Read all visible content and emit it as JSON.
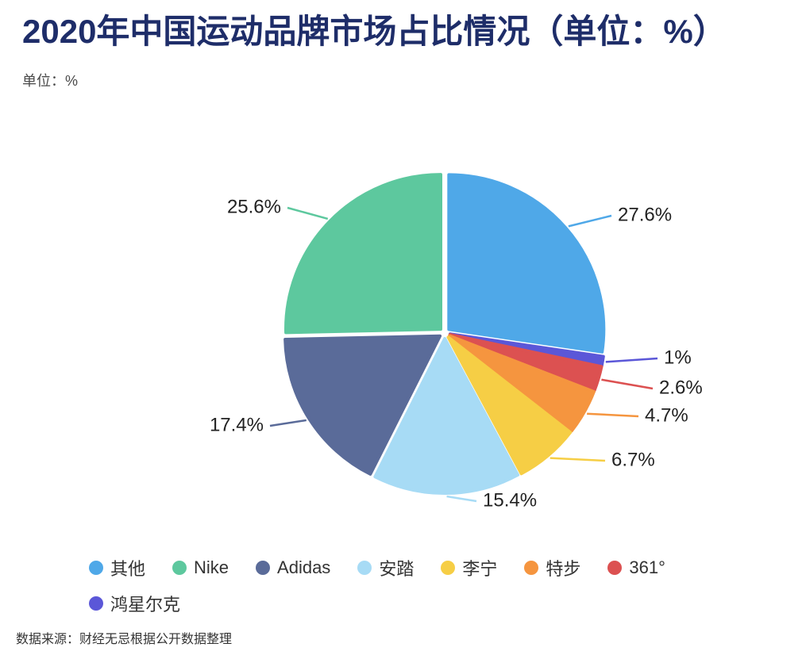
{
  "header": {
    "title": "2020年中国运动品牌市场占比情况（单位：%）",
    "unit_label": "单位：%"
  },
  "footer": {
    "source": "数据来源：财经无忌根据公开数据整理"
  },
  "chart_data": {
    "type": "pie",
    "title": "2020年中国运动品牌市场占比情况（单位：%）",
    "unit": "%",
    "legend_position": "bottom",
    "slices": [
      {
        "name": "其他",
        "value": 27.6,
        "label": "27.6%",
        "color": "#4FA8E8"
      },
      {
        "name": "鸿星尔克",
        "value": 1,
        "label": "1%",
        "color": "#5B57D8"
      },
      {
        "name": "361°",
        "value": 2.6,
        "label": "2.6%",
        "color": "#DC5151"
      },
      {
        "name": "特步",
        "value": 4.7,
        "label": "4.7%",
        "color": "#F5953F"
      },
      {
        "name": "李宁",
        "value": 6.7,
        "label": "6.7%",
        "color": "#F6CE45"
      },
      {
        "name": "安踏",
        "value": 15.4,
        "label": "15.4%",
        "color": "#A7DBF5"
      },
      {
        "name": "Adidas",
        "value": 17.4,
        "label": "17.4%",
        "color": "#5A6B99"
      },
      {
        "name": "Nike",
        "value": 25.6,
        "label": "25.6%",
        "color": "#5DC89E"
      }
    ]
  }
}
